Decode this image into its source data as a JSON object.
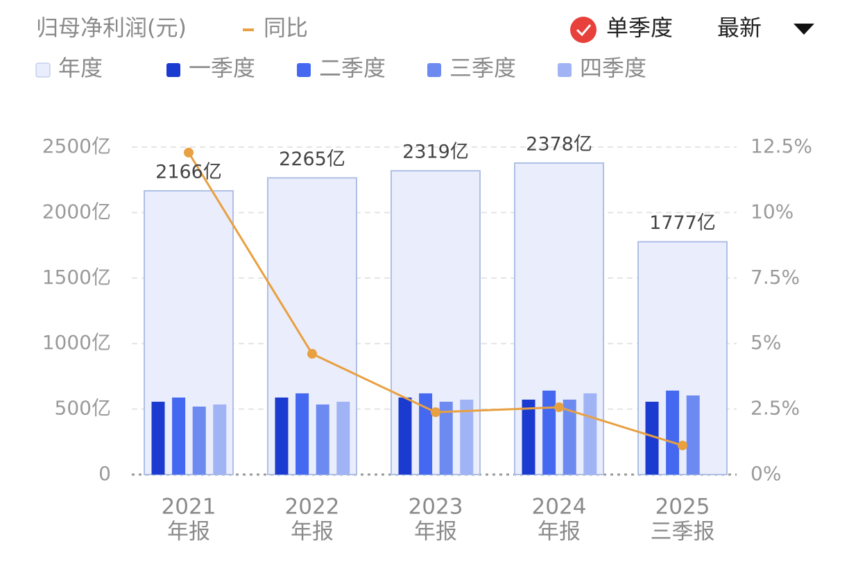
{
  "chart_data": {
    "type": "bar",
    "title": "归母净利润(元)",
    "toggle_label": "单季度",
    "period_label": "最新",
    "categories": [
      [
        "2021",
        "年报"
      ],
      [
        "2022",
        "年报"
      ],
      [
        "2023",
        "年报"
      ],
      [
        "2024",
        "年报"
      ],
      [
        "2025",
        "三季报"
      ]
    ],
    "series": [
      {
        "name": "年度",
        "type": "bar",
        "color": "#eaedfb",
        "values": [
          2166,
          2265,
          2319,
          2378,
          1777
        ],
        "value_labels": [
          "2166亿",
          "2265亿",
          "2319亿",
          "2378亿",
          "1777亿"
        ]
      },
      {
        "name": "一季度",
        "type": "bar",
        "color": "#1a3ad0",
        "values": [
          556,
          588,
          588,
          572,
          556
        ]
      },
      {
        "name": "二季度",
        "type": "bar",
        "color": "#4468f0",
        "values": [
          588,
          620,
          620,
          641,
          641
        ]
      },
      {
        "name": "三季度",
        "type": "bar",
        "color": "#6c8af0",
        "values": [
          519,
          535,
          556,
          572,
          604
        ]
      },
      {
        "name": "四季度",
        "type": "bar",
        "color": "#a0b4f5",
        "values": [
          535,
          556,
          572,
          620,
          null
        ]
      },
      {
        "name": "同比",
        "type": "line",
        "axis": "y2",
        "color": "#e8a040",
        "values": [
          12.29,
          4.61,
          2.38,
          2.57,
          1.11
        ]
      }
    ],
    "ylim": [
      0,
      2500
    ],
    "yticks": [
      0,
      {
        "value": 500,
        "label": "500亿"
      },
      {
        "value": 1000,
        "label": "1000亿"
      },
      {
        "value": 1500,
        "label": "1500亿"
      },
      {
        "value": 2000,
        "label": "2000亿"
      },
      {
        "value": 2500,
        "label": "2500亿"
      }
    ],
    "y2lim": [
      0,
      12.5
    ],
    "y2ticks": [
      {
        "value": 0,
        "label": "0%"
      },
      {
        "value": 2.5,
        "label": "2.5%"
      },
      {
        "value": 5,
        "label": "5%"
      },
      {
        "value": 7.5,
        "label": "7.5%"
      },
      {
        "value": 10,
        "label": "10%"
      },
      {
        "value": 12.5,
        "label": "12.5%"
      }
    ],
    "grid": true
  }
}
